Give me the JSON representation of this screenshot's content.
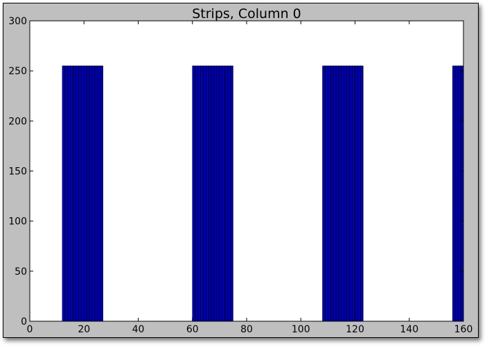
{
  "chart_data": {
    "type": "bar",
    "title": "Strips, Column 0",
    "xlabel": "",
    "ylabel": "",
    "xlim": [
      0,
      160
    ],
    "ylim": [
      0,
      300
    ],
    "xticks": [
      0,
      20,
      40,
      60,
      80,
      100,
      120,
      140,
      160
    ],
    "yticks": [
      0,
      50,
      100,
      150,
      200,
      250,
      300
    ],
    "grid": false,
    "bar_color": "#0000b0",
    "bar_edge_color": "#000000",
    "bar_width": 1,
    "x": [
      12,
      13,
      14,
      15,
      16,
      17,
      18,
      19,
      20,
      21,
      22,
      23,
      24,
      25,
      26,
      60,
      61,
      62,
      63,
      64,
      65,
      66,
      67,
      68,
      69,
      70,
      71,
      72,
      73,
      74,
      108,
      109,
      110,
      111,
      112,
      113,
      114,
      115,
      116,
      117,
      118,
      119,
      120,
      121,
      122,
      156,
      157,
      158,
      159
    ],
    "values": [
      255,
      255,
      255,
      255,
      255,
      255,
      255,
      255,
      255,
      255,
      255,
      255,
      255,
      255,
      255,
      255,
      255,
      255,
      255,
      255,
      255,
      255,
      255,
      255,
      255,
      255,
      255,
      255,
      255,
      255,
      255,
      255,
      255,
      255,
      255,
      255,
      255,
      255,
      255,
      255,
      255,
      255,
      255,
      255,
      255,
      255,
      255,
      255,
      255
    ]
  }
}
